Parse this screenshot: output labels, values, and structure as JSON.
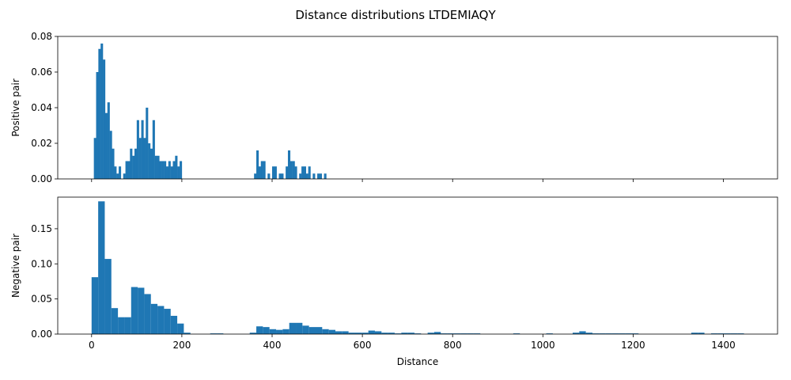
{
  "figure": {
    "title": "Distance distributions LTDEMIAQY"
  },
  "colors": {
    "bar": "#1f77b4"
  },
  "chart_data": [
    {
      "type": "bar",
      "name": "positive",
      "title": "",
      "xlabel": "",
      "ylabel": "Positive pair",
      "xlim": [
        -75,
        1520
      ],
      "ylim": [
        0,
        0.08
      ],
      "xticks": [
        0,
        200,
        400,
        600,
        800,
        1000,
        1200,
        1400
      ],
      "yticks": [
        0.0,
        0.02,
        0.04,
        0.06,
        0.08
      ],
      "ytick_labels": [
        "0.00",
        "0.02",
        "0.04",
        "0.06",
        "0.08"
      ],
      "show_xtick_labels": false,
      "grid": false,
      "bin_width": 5.4,
      "bins": [
        [
          5,
          0.023
        ],
        [
          10,
          0.06
        ],
        [
          15,
          0.073
        ],
        [
          20,
          0.076
        ],
        [
          25,
          0.067
        ],
        [
          30,
          0.037
        ],
        [
          35,
          0.043
        ],
        [
          40,
          0.027
        ],
        [
          45,
          0.017
        ],
        [
          50,
          0.007
        ],
        [
          55,
          0.003
        ],
        [
          60,
          0.007
        ],
        [
          70,
          0.003
        ],
        [
          75,
          0.01
        ],
        [
          80,
          0.01
        ],
        [
          85,
          0.017
        ],
        [
          90,
          0.013
        ],
        [
          95,
          0.017
        ],
        [
          100,
          0.033
        ],
        [
          105,
          0.023
        ],
        [
          110,
          0.033
        ],
        [
          115,
          0.023
        ],
        [
          120,
          0.04
        ],
        [
          125,
          0.02
        ],
        [
          130,
          0.017
        ],
        [
          135,
          0.033
        ],
        [
          140,
          0.013
        ],
        [
          145,
          0.013
        ],
        [
          150,
          0.01
        ],
        [
          155,
          0.01
        ],
        [
          160,
          0.01
        ],
        [
          165,
          0.007
        ],
        [
          170,
          0.01
        ],
        [
          175,
          0.007
        ],
        [
          180,
          0.01
        ],
        [
          185,
          0.013
        ],
        [
          190,
          0.007
        ],
        [
          195,
          0.01
        ],
        [
          360,
          0.003
        ],
        [
          365,
          0.016
        ],
        [
          370,
          0.007
        ],
        [
          375,
          0.01
        ],
        [
          380,
          0.01
        ],
        [
          390,
          0.003
        ],
        [
          400,
          0.007
        ],
        [
          405,
          0.007
        ],
        [
          415,
          0.003
        ],
        [
          420,
          0.003
        ],
        [
          430,
          0.007
        ],
        [
          435,
          0.016
        ],
        [
          440,
          0.01
        ],
        [
          445,
          0.01
        ],
        [
          450,
          0.007
        ],
        [
          460,
          0.003
        ],
        [
          465,
          0.007
        ],
        [
          470,
          0.007
        ],
        [
          475,
          0.003
        ],
        [
          480,
          0.007
        ],
        [
          490,
          0.003
        ],
        [
          500,
          0.003
        ],
        [
          505,
          0.003
        ],
        [
          515,
          0.003
        ]
      ]
    },
    {
      "type": "bar",
      "name": "negative",
      "title": "",
      "xlabel": "Distance",
      "ylabel": "Negative pair",
      "xlim": [
        -75,
        1520
      ],
      "ylim": [
        0,
        0.195
      ],
      "xticks": [
        0,
        200,
        400,
        600,
        800,
        1000,
        1200,
        1400
      ],
      "xtick_labels": [
        "0",
        "200",
        "400",
        "600",
        "800",
        "1000",
        "1200",
        "1400"
      ],
      "yticks": [
        0.0,
        0.05,
        0.1,
        0.15
      ],
      "ytick_labels": [
        "0.00",
        "0.05",
        "0.10",
        "0.15"
      ],
      "show_xtick_labels": true,
      "grid": false,
      "bin_width": 14.6,
      "bins": [
        [
          0,
          0.081
        ],
        [
          14.6,
          0.189
        ],
        [
          29.2,
          0.107
        ],
        [
          43.8,
          0.037
        ],
        [
          58.4,
          0.024
        ],
        [
          73,
          0.024
        ],
        [
          87.6,
          0.067
        ],
        [
          102.2,
          0.066
        ],
        [
          116.8,
          0.057
        ],
        [
          131.4,
          0.043
        ],
        [
          146,
          0.04
        ],
        [
          160.6,
          0.036
        ],
        [
          175.2,
          0.026
        ],
        [
          189.8,
          0.015
        ],
        [
          204.4,
          0.002
        ],
        [
          262.8,
          0.001
        ],
        [
          277.4,
          0.001
        ],
        [
          350.4,
          0.002
        ],
        [
          365,
          0.011
        ],
        [
          379.6,
          0.01
        ],
        [
          394.2,
          0.007
        ],
        [
          408.8,
          0.006
        ],
        [
          423.4,
          0.007
        ],
        [
          438,
          0.016
        ],
        [
          452.6,
          0.016
        ],
        [
          467.2,
          0.012
        ],
        [
          481.8,
          0.01
        ],
        [
          496.4,
          0.01
        ],
        [
          511,
          0.007
        ],
        [
          525.6,
          0.006
        ],
        [
          540.2,
          0.004
        ],
        [
          554.8,
          0.004
        ],
        [
          569.4,
          0.002
        ],
        [
          584,
          0.002
        ],
        [
          598.6,
          0.002
        ],
        [
          613.2,
          0.005
        ],
        [
          627.8,
          0.004
        ],
        [
          642.4,
          0.002
        ],
        [
          657,
          0.002
        ],
        [
          671.6,
          0.001
        ],
        [
          686.2,
          0.002
        ],
        [
          700.8,
          0.002
        ],
        [
          715.4,
          0.001
        ],
        [
          744.6,
          0.002
        ],
        [
          759.2,
          0.003
        ],
        [
          773.8,
          0.001
        ],
        [
          788.4,
          0.001
        ],
        [
          803,
          0.001
        ],
        [
          817.6,
          0.001
        ],
        [
          832.2,
          0.001
        ],
        [
          846.8,
          0.001
        ],
        [
          934.4,
          0.001
        ],
        [
          1007.4,
          0.001
        ],
        [
          1066,
          0.002
        ],
        [
          1080.6,
          0.004
        ],
        [
          1095.2,
          0.002
        ],
        [
          1109.8,
          0.001
        ],
        [
          1124.4,
          0.001
        ],
        [
          1139,
          0.001
        ],
        [
          1153.6,
          0.001
        ],
        [
          1168.2,
          0.001
        ],
        [
          1182.8,
          0.001
        ],
        [
          1197.4,
          0.001
        ],
        [
          1328.8,
          0.002
        ],
        [
          1343.4,
          0.002
        ],
        [
          1372.6,
          0.001
        ],
        [
          1387.2,
          0.001
        ],
        [
          1401.8,
          0.001
        ],
        [
          1416.4,
          0.001
        ],
        [
          1431,
          0.001
        ]
      ]
    }
  ]
}
